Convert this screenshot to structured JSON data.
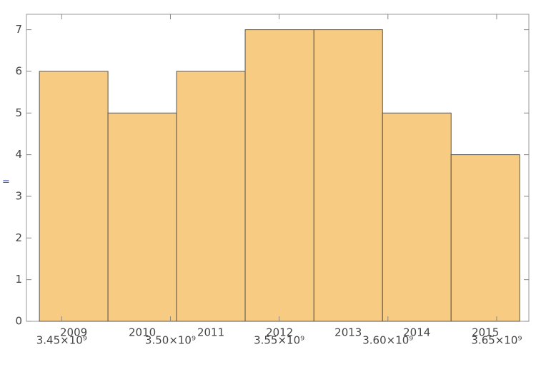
{
  "cell_label": "=",
  "chart_data": {
    "type": "histogram",
    "bins": [
      3439756800,
      3471292800,
      3502828800,
      3534364800,
      3565987200,
      3597523200,
      3629059200,
      3660595200
    ],
    "values": [
      6,
      5,
      6,
      7,
      7,
      5,
      4
    ],
    "categories": [
      "2009",
      "2010",
      "2011",
      "2012",
      "2013",
      "2014",
      "2015"
    ],
    "color": "#f8cb83",
    "xlim": [
      3433800000,
      3664800000
    ],
    "ylim": [
      0,
      7.37
    ],
    "xticks": [
      {
        "value": 3450000000,
        "label": "3.45×10⁹"
      },
      {
        "value": 3500000000,
        "label": "3.50×10⁹"
      },
      {
        "value": 3550000000,
        "label": "3.55×10⁹"
      },
      {
        "value": 3600000000,
        "label": "3.60×10⁹"
      },
      {
        "value": 3650000000,
        "label": "3.65×10⁹"
      }
    ],
    "yticks": [
      0,
      1,
      2,
      3,
      4,
      5,
      6,
      7
    ]
  }
}
